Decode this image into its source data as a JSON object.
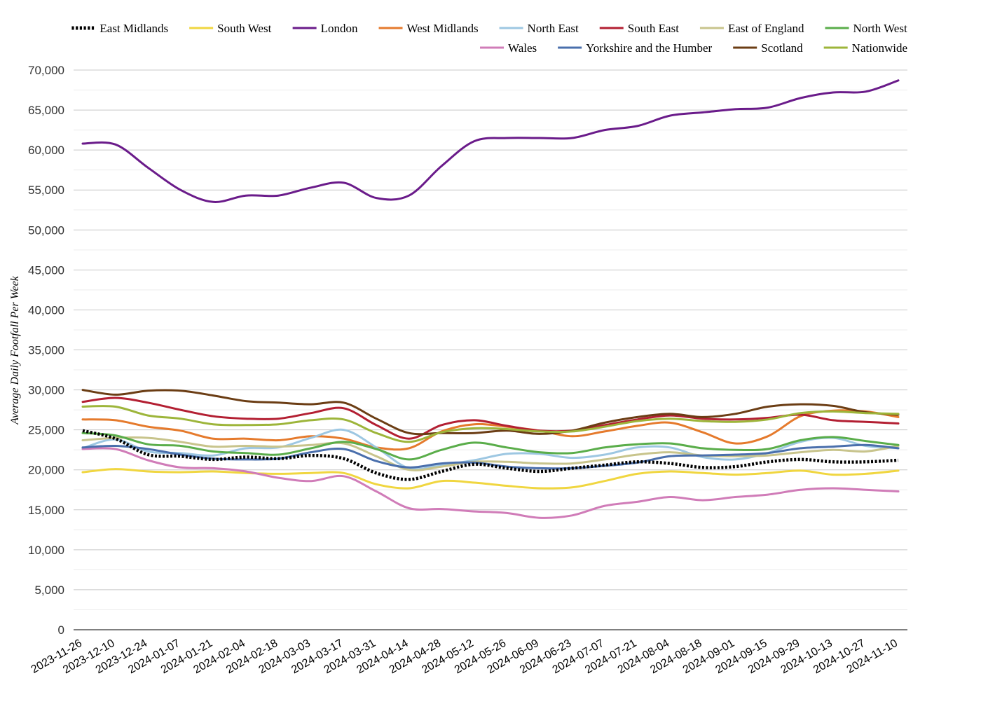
{
  "chart_data": {
    "type": "line",
    "title": "",
    "xlabel": "",
    "ylabel": "Average Daily Footfall Per Week",
    "ylim": [
      0,
      70000
    ],
    "yticks": [
      0,
      5000,
      10000,
      15000,
      20000,
      25000,
      30000,
      35000,
      40000,
      45000,
      50000,
      55000,
      60000,
      65000,
      70000
    ],
    "ytick_labels": [
      "0",
      "5,000",
      "10,000",
      "15,000",
      "20,000",
      "25,000",
      "30,000",
      "35,000",
      "40,000",
      "45,000",
      "50,000",
      "55,000",
      "60,000",
      "65,000",
      "70,000"
    ],
    "grid": true,
    "legend_position": "top-right",
    "x": [
      "2023-11-26",
      "2023-12-10",
      "2023-12-24",
      "2024-01-07",
      "2024-01-21",
      "2024-02-04",
      "2024-02-18",
      "2024-03-03",
      "2024-03-17",
      "2024-03-31",
      "2024-04-14",
      "2024-04-28",
      "2024-05-12",
      "2024-05-26",
      "2024-06-09",
      "2024-06-23",
      "2024-07-07",
      "2024-07-21",
      "2024-08-04",
      "2024-08-18",
      "2024-09-01",
      "2024-09-15",
      "2024-09-29",
      "2024-10-13",
      "2024-10-27",
      "2024-11-10"
    ],
    "series": [
      {
        "name": "East Midlands",
        "color": "#000000",
        "dashed": true,
        "values": [
          24900,
          23900,
          21900,
          21700,
          21300,
          21600,
          21400,
          21800,
          21400,
          19600,
          18800,
          19800,
          20700,
          20200,
          19800,
          20200,
          20600,
          21000,
          20800,
          20300,
          20400,
          21000,
          21300,
          21000,
          21000,
          21200
        ]
      },
      {
        "name": "South West",
        "color": "#f0d640",
        "values": [
          19700,
          20100,
          19800,
          19700,
          19800,
          19600,
          19500,
          19600,
          19600,
          18200,
          17700,
          18600,
          18400,
          18000,
          17700,
          17800,
          18600,
          19500,
          19800,
          19600,
          19400,
          19600,
          19900,
          19400,
          19500,
          19900
        ]
      },
      {
        "name": "London",
        "color": "#6a1b8a",
        "values": [
          60800,
          60700,
          57800,
          55000,
          53500,
          54300,
          54300,
          55300,
          55900,
          54000,
          54300,
          58000,
          61100,
          61500,
          61500,
          61500,
          62500,
          63000,
          64300,
          64700,
          65100,
          65300,
          66500,
          67200,
          67300,
          68700
        ]
      },
      {
        "name": "West Midlands",
        "color": "#e57a2c",
        "values": [
          26300,
          26200,
          25400,
          24900,
          23900,
          23900,
          23700,
          24200,
          23900,
          22800,
          22700,
          24800,
          25700,
          25400,
          24900,
          24200,
          24800,
          25500,
          25900,
          24700,
          23300,
          24200,
          26700,
          27400,
          27300,
          26600
        ]
      },
      {
        "name": "North East",
        "color": "#9dc7e2",
        "values": [
          22700,
          23800,
          22300,
          22100,
          21800,
          22700,
          22800,
          24000,
          25000,
          22800,
          20200,
          20600,
          21200,
          22000,
          22000,
          21500,
          21900,
          22800,
          22800,
          21600,
          21300,
          22100,
          23500,
          24000,
          23000,
          22700
        ]
      },
      {
        "name": "South East",
        "color": "#b31f32",
        "values": [
          28500,
          29000,
          28400,
          27500,
          26700,
          26400,
          26400,
          27100,
          27700,
          25600,
          23900,
          25600,
          26200,
          25500,
          24900,
          24900,
          25600,
          26300,
          26800,
          26400,
          26300,
          26500,
          26900,
          26200,
          26000,
          25800
        ]
      },
      {
        "name": "East of England",
        "color": "#c8c48c",
        "values": [
          23700,
          24000,
          24000,
          23500,
          22900,
          23000,
          22900,
          23100,
          23300,
          21700,
          20000,
          20400,
          21000,
          21000,
          20800,
          20800,
          21300,
          21900,
          22200,
          21800,
          21700,
          21800,
          22200,
          22500,
          22300,
          23000
        ]
      },
      {
        "name": "North West",
        "color": "#5aad4a",
        "values": [
          24600,
          24300,
          23200,
          23000,
          22300,
          22100,
          21900,
          22700,
          23500,
          22600,
          21300,
          22500,
          23400,
          22800,
          22200,
          22100,
          22800,
          23200,
          23300,
          22700,
          22500,
          22600,
          23700,
          24100,
          23600,
          23100
        ]
      },
      {
        "name": "Wales",
        "color": "#d07cb8",
        "values": [
          22600,
          22600,
          21200,
          20300,
          20200,
          19800,
          19000,
          18600,
          19200,
          17300,
          15200,
          15100,
          14800,
          14600,
          14000,
          14300,
          15500,
          16000,
          16600,
          16200,
          16600,
          16900,
          17500,
          17700,
          17500,
          17300
        ]
      },
      {
        "name": "Yorkshire and the Humber",
        "color": "#4a6fac",
        "values": [
          22800,
          23000,
          22600,
          21900,
          21400,
          21300,
          21400,
          22200,
          22600,
          21100,
          20300,
          20800,
          20900,
          20400,
          20200,
          20200,
          20500,
          20900,
          21700,
          21800,
          21900,
          22100,
          22700,
          22900,
          23100,
          22700
        ]
      },
      {
        "name": "Scotland",
        "color": "#6b3d14",
        "values": [
          30000,
          29400,
          29900,
          29900,
          29300,
          28600,
          28400,
          28200,
          28400,
          26400,
          24600,
          24600,
          24600,
          24900,
          24500,
          24900,
          25900,
          26600,
          27000,
          26600,
          27000,
          27900,
          28200,
          28000,
          27200,
          26900
        ]
      },
      {
        "name": "Nationwide",
        "color": "#9db53a",
        "values": [
          27900,
          27900,
          26800,
          26400,
          25700,
          25600,
          25700,
          26200,
          26300,
          24600,
          23500,
          24700,
          25200,
          25100,
          24800,
          24800,
          25400,
          26100,
          26400,
          26100,
          26000,
          26300,
          27100,
          27300,
          27100,
          27000
        ]
      }
    ]
  }
}
